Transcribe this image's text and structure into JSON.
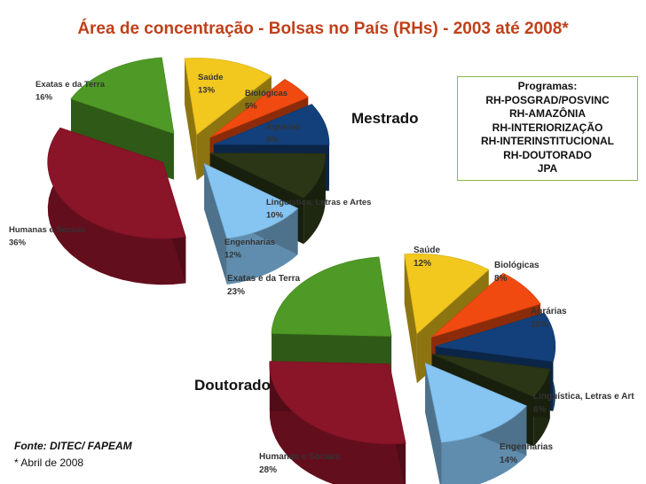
{
  "title": "Área de concentração - Bolsas  no País (RHs) - 2003 até 2008*",
  "programs_box": {
    "heading": "Programas:",
    "items": [
      "RH-POSGRAD/POSVINC",
      "RH-AMAZÔNIA",
      "RH-INTERIORIZAÇÃO",
      "RH-INTERINSTITUCIONAL",
      "RH-DOUTORADO",
      "JPA"
    ]
  },
  "source": "Fonte:  DITEC/ FAPEAM",
  "footnote": "* Abril de 2008",
  "colors": {
    "title": "#c0401a",
    "saude": "#f2c81e",
    "biologicas": "#f04a10",
    "agrarias": "#13407a",
    "linguistica": "#2a3616",
    "engenharias": "#86c4f2",
    "humanas": "#8a1428",
    "exatas": "#4f9a26"
  },
  "chart_data": [
    {
      "type": "pie",
      "name": "Mestrado",
      "categories": [
        "Saúde",
        "Biológicas",
        "Agrárias",
        "Linguística, Letras e Artes",
        "Engenharias",
        "Humanas e Sociais",
        "Exatas e da Terra"
      ],
      "labels": [
        "Saúde",
        "Biológicas",
        "Agrárias",
        "Linguística, Letras e Artes",
        "Engenharias",
        "Humanas e Sociais",
        "Exatas e da Terra"
      ],
      "value_labels": [
        "13%",
        "5%",
        "9%",
        "10%",
        "12%",
        "36%",
        "16%"
      ],
      "values": [
        13,
        5,
        9,
        10,
        12,
        36,
        16
      ]
    },
    {
      "type": "pie",
      "name": "Doutorado",
      "categories": [
        "Saúde",
        "Biológicas",
        "Agrárias",
        "Linguística, Letras e Artes",
        "Engenharias",
        "Humanas e Sociais",
        "Exatas e da Terra"
      ],
      "labels": [
        "Saúde",
        "Biológicas",
        "Agrárias",
        "Linguística, Letras e Art",
        "Engenharias",
        "Humanas e Sociais",
        "Exatas e da Terra"
      ],
      "value_labels": [
        "12%",
        "8%",
        "10%",
        "6%",
        "14%",
        "28%",
        "23%"
      ],
      "values": [
        12,
        8,
        10,
        6,
        14,
        28,
        23
      ]
    }
  ]
}
